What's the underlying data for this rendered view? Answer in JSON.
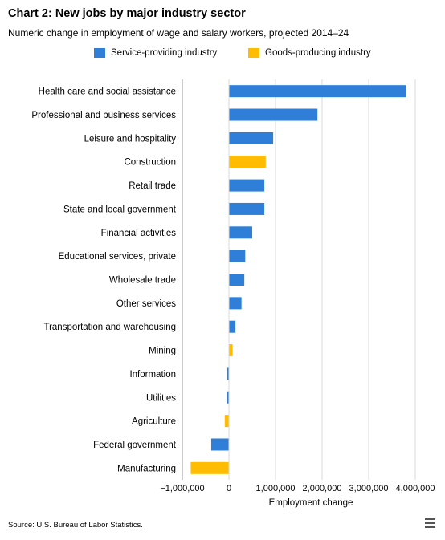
{
  "title": "Chart 2: New jobs by major industry sector",
  "subtitle": "Numeric change in employment of wage and salary workers, projected 2014–24",
  "source": "Source: U.S. Bureau of Labor Statistics.",
  "menu_icon": "hamburger-menu-icon",
  "colors": {
    "service": "#2f7ed8",
    "goods": "#ffbc00",
    "grid": "#d8d8d8",
    "axis": "#999999"
  },
  "chart_data": {
    "type": "bar",
    "orientation": "horizontal",
    "title": "Chart 2: New jobs by major industry sector",
    "subtitle": "Numeric change in employment of wage and salary workers, projected 2014–24",
    "xlabel": "Employment change",
    "ylabel": "",
    "xlim": [
      -1000000,
      4000000
    ],
    "xticks": [
      -1000000,
      0,
      1000000,
      2000000,
      3000000,
      4000000
    ],
    "xtick_labels": [
      "−1,000,000",
      "0",
      "1,000,000",
      "2,000,000",
      "3,000,000",
      "4,000,000"
    ],
    "grid": true,
    "legend_position": "top",
    "series": [
      {
        "name": "Service-providing industry",
        "key": "service"
      },
      {
        "name": "Goods-producing industry",
        "key": "goods"
      }
    ],
    "categories": [
      "Health care and social assistance",
      "Professional and business services",
      "Leisure and hospitality",
      "Construction",
      "Retail trade",
      "State and local government",
      "Financial activities",
      "Educational services, private",
      "Wholesale trade",
      "Other services",
      "Transportation and warehousing",
      "Mining",
      "Information",
      "Utilities",
      "Agriculture",
      "Federal government",
      "Manufacturing"
    ],
    "values": [
      3800000,
      1900000,
      950000,
      790000,
      760000,
      760000,
      500000,
      350000,
      330000,
      270000,
      140000,
      80000,
      -40000,
      -45000,
      -90000,
      -380000,
      -820000
    ],
    "sector": [
      "service",
      "service",
      "service",
      "goods",
      "service",
      "service",
      "service",
      "service",
      "service",
      "service",
      "service",
      "goods",
      "service",
      "service",
      "goods",
      "service",
      "goods"
    ]
  }
}
